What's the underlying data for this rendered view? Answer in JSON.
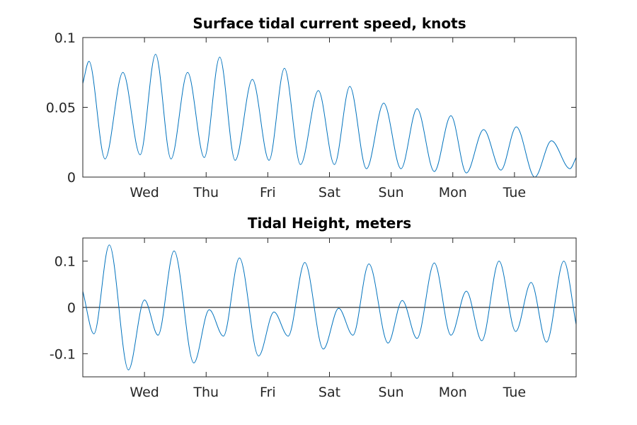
{
  "chart_data": [
    {
      "type": "line",
      "title": "Surface tidal current speed, knots",
      "xlabel": "",
      "ylabel": "",
      "xlim": [
        0,
        8
      ],
      "ylim": [
        0,
        0.1
      ],
      "yticks": [
        0,
        0.05,
        0.1
      ],
      "ytick_labels": [
        "0",
        "0.05",
        "0.1"
      ],
      "xticks": [
        1,
        2,
        3,
        4,
        5,
        6,
        7
      ],
      "xtick_labels": [
        "Wed",
        "Thu",
        "Fri",
        "Sat",
        "Sun",
        "Mon",
        "Tue"
      ],
      "grid": false,
      "series": [
        {
          "color": "#0072bd",
          "points": [
            [
              0.0,
              0.067
            ],
            [
              0.1,
              0.083
            ],
            [
              0.36,
              0.013
            ],
            [
              0.65,
              0.075
            ],
            [
              0.93,
              0.016
            ],
            [
              1.18,
              0.088
            ],
            [
              1.43,
              0.013
            ],
            [
              1.7,
              0.075
            ],
            [
              1.97,
              0.014
            ],
            [
              2.22,
              0.086
            ],
            [
              2.47,
              0.012
            ],
            [
              2.75,
              0.07
            ],
            [
              3.02,
              0.012
            ],
            [
              3.27,
              0.078
            ],
            [
              3.53,
              0.009
            ],
            [
              3.82,
              0.062
            ],
            [
              4.08,
              0.009
            ],
            [
              4.33,
              0.065
            ],
            [
              4.6,
              0.006
            ],
            [
              4.88,
              0.053
            ],
            [
              5.16,
              0.006
            ],
            [
              5.42,
              0.049
            ],
            [
              5.7,
              0.004
            ],
            [
              5.97,
              0.044
            ],
            [
              6.22,
              0.003
            ],
            [
              6.5,
              0.034
            ],
            [
              6.78,
              0.005
            ],
            [
              7.03,
              0.036
            ],
            [
              7.33,
              0.0
            ],
            [
              7.6,
              0.026
            ],
            [
              7.9,
              0.006
            ],
            [
              8.0,
              0.014
            ]
          ]
        }
      ]
    },
    {
      "type": "line",
      "title": "Tidal Height, meters",
      "xlabel": "",
      "ylabel": "",
      "xlim": [
        0,
        8
      ],
      "ylim": [
        -0.15,
        0.15
      ],
      "yticks": [
        -0.1,
        0,
        0.1
      ],
      "ytick_labels": [
        "-0.1",
        "0",
        "0.1"
      ],
      "xticks": [
        1,
        2,
        3,
        4,
        5,
        6,
        7
      ],
      "xtick_labels": [
        "Wed",
        "Thu",
        "Fri",
        "Sat",
        "Sun",
        "Mon",
        "Tue"
      ],
      "grid": false,
      "zero_line": true,
      "series": [
        {
          "color": "#0072bd",
          "points": [
            [
              0.0,
              0.035
            ],
            [
              0.18,
              -0.057
            ],
            [
              0.43,
              0.135
            ],
            [
              0.74,
              -0.135
            ],
            [
              1.0,
              0.016
            ],
            [
              1.22,
              -0.06
            ],
            [
              1.48,
              0.122
            ],
            [
              1.8,
              -0.12
            ],
            [
              2.05,
              -0.005
            ],
            [
              2.28,
              -0.062
            ],
            [
              2.54,
              0.107
            ],
            [
              2.85,
              -0.105
            ],
            [
              3.1,
              -0.01
            ],
            [
              3.33,
              -0.062
            ],
            [
              3.6,
              0.097
            ],
            [
              3.9,
              -0.09
            ],
            [
              4.15,
              -0.002
            ],
            [
              4.38,
              -0.06
            ],
            [
              4.64,
              0.094
            ],
            [
              4.95,
              -0.077
            ],
            [
              5.18,
              0.015
            ],
            [
              5.42,
              -0.067
            ],
            [
              5.7,
              0.096
            ],
            [
              5.97,
              -0.06
            ],
            [
              6.22,
              0.035
            ],
            [
              6.47,
              -0.072
            ],
            [
              6.75,
              0.1
            ],
            [
              7.02,
              -0.052
            ],
            [
              7.27,
              0.054
            ],
            [
              7.52,
              -0.075
            ],
            [
              7.8,
              0.1
            ],
            [
              8.0,
              -0.037
            ]
          ]
        }
      ]
    }
  ]
}
